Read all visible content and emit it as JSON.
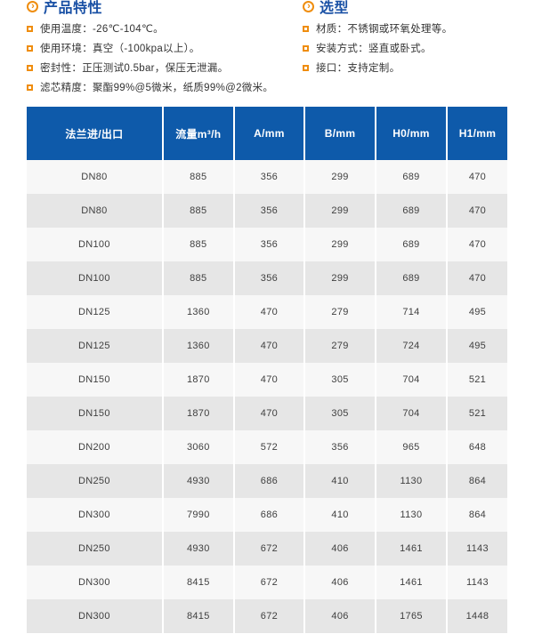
{
  "colors": {
    "header_blue": "#0e5aaa",
    "title_blue": "#1a51a5",
    "accent_orange": "#ef8d0e",
    "row_light": "#f7f7f7",
    "row_dark": "#e6e6e6",
    "cell_text": "#3f3f3f",
    "body_text": "#333333"
  },
  "sections": [
    {
      "title": "产品特性",
      "icon": "circle-chevron-icon",
      "items": [
        "使用温度：-26℃-104℃。",
        "使用环境：真空（-100kpa以上）。",
        "密封性：正压测试0.5bar，保压无泄漏。",
        "滤芯精度：聚酯99%@5微米，纸质99%@2微米。"
      ]
    },
    {
      "title": "选型",
      "icon": "circle-chevron-icon",
      "items": [
        "材质：不锈钢或环氧处理等。",
        "安装方式：竖直或卧式。",
        "接口：支持定制。"
      ]
    }
  ],
  "table": {
    "headers": [
      "法兰进/出口",
      "流量m³/h",
      "A/mm",
      "B/mm",
      "H0/mm",
      "H1/mm"
    ],
    "rows": [
      [
        "DN80",
        "885",
        "356",
        "299",
        "689",
        "470"
      ],
      [
        "DN80",
        "885",
        "356",
        "299",
        "689",
        "470"
      ],
      [
        "DN100",
        "885",
        "356",
        "299",
        "689",
        "470"
      ],
      [
        "DN100",
        "885",
        "356",
        "299",
        "689",
        "470"
      ],
      [
        "DN125",
        "1360",
        "470",
        "279",
        "714",
        "495"
      ],
      [
        "DN125",
        "1360",
        "470",
        "279",
        "724",
        "495"
      ],
      [
        "DN150",
        "1870",
        "470",
        "305",
        "704",
        "521"
      ],
      [
        "DN150",
        "1870",
        "470",
        "305",
        "704",
        "521"
      ],
      [
        "DN200",
        "3060",
        "572",
        "356",
        "965",
        "648"
      ],
      [
        "DN250",
        "4930",
        "686",
        "410",
        "1130",
        "864"
      ],
      [
        "DN300",
        "7990",
        "686",
        "410",
        "1130",
        "864"
      ],
      [
        "DN250",
        "4930",
        "672",
        "406",
        "1461",
        "1143"
      ],
      [
        "DN300",
        "8415",
        "672",
        "406",
        "1461",
        "1143"
      ],
      [
        "DN300",
        "8415",
        "672",
        "406",
        "1765",
        "1448"
      ]
    ]
  }
}
